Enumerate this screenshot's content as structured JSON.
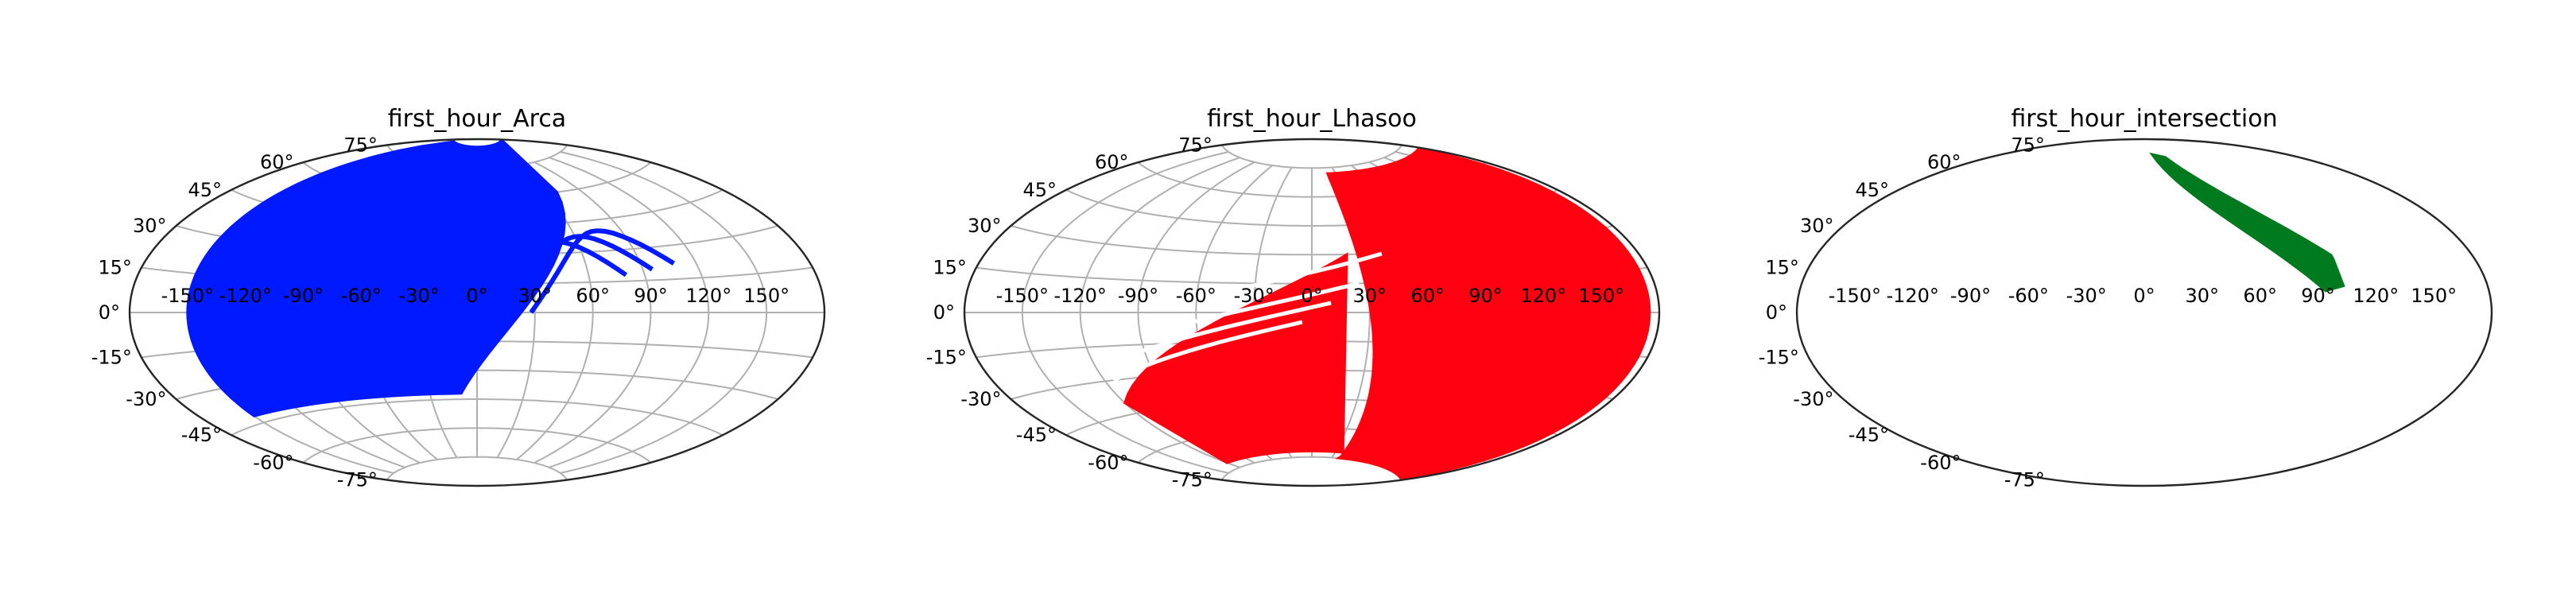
{
  "chart_data": [
    {
      "type": "scatter",
      "projection": "aitoff",
      "title": "first_hour_Arca",
      "grid": true,
      "xticks": [
        "-150°",
        "-120°",
        "-90°",
        "-60°",
        "-30°",
        "0°",
        "30°",
        "60°",
        "90°",
        "120°",
        "150°"
      ],
      "yticks": [
        "-75°",
        "-60°",
        "-45°",
        "-30°",
        "-15°",
        "0°",
        "15°",
        "30°",
        "45°",
        "60°",
        "75°"
      ],
      "color": "#0019ff",
      "region": {
        "lon_min": -150,
        "lon_max": 70,
        "lat_min": -42,
        "lat_max": 80,
        "east_edge_from": -10,
        "east_edge_to": 70,
        "streaks": [
          {
            "lon": 80,
            "lat": 18
          },
          {
            "lon": 95,
            "lat": 20
          },
          {
            "lon": 108,
            "lat": 22
          }
        ]
      }
    },
    {
      "type": "scatter",
      "projection": "aitoff",
      "title": "first_hour_Lhasoo",
      "grid": true,
      "xticks": [
        "-150°",
        "-120°",
        "-90°",
        "-60°",
        "-30°",
        "0°",
        "30°",
        "60°",
        "90°",
        "120°",
        "150°"
      ],
      "yticks": [
        "-75°",
        "-60°",
        "-45°",
        "-30°",
        "-15°",
        "0°",
        "15°",
        "30°",
        "45°",
        "60°",
        "75°"
      ],
      "color": "#ff0011",
      "region": {
        "lon_min": 20,
        "lon_max": 175,
        "lat_min": -75,
        "lat_max": 70,
        "west_edge_from": 20,
        "west_edge_to": -120,
        "streaks": [
          {
            "lon": -70,
            "lat": 5
          },
          {
            "lon": -85,
            "lat": -10
          },
          {
            "lon": -100,
            "lat": -20
          },
          {
            "lon": -115,
            "lat": -30
          }
        ]
      }
    },
    {
      "type": "scatter",
      "projection": "aitoff",
      "title": "first_hour_intersection",
      "grid": false,
      "xticks": [
        "-150°",
        "-120°",
        "-90°",
        "-60°",
        "-30°",
        "0°",
        "30°",
        "60°",
        "90°",
        "120°",
        "150°"
      ],
      "yticks": [
        "-75°",
        "-60°",
        "-45°",
        "-30°",
        "-15°",
        "0°",
        "15°",
        "30°",
        "45°",
        "60°",
        "75°"
      ],
      "color": "#007a1e",
      "region": {
        "lon_min": 20,
        "lon_max": 105,
        "lat_min": 10,
        "lat_max": 82
      }
    }
  ]
}
